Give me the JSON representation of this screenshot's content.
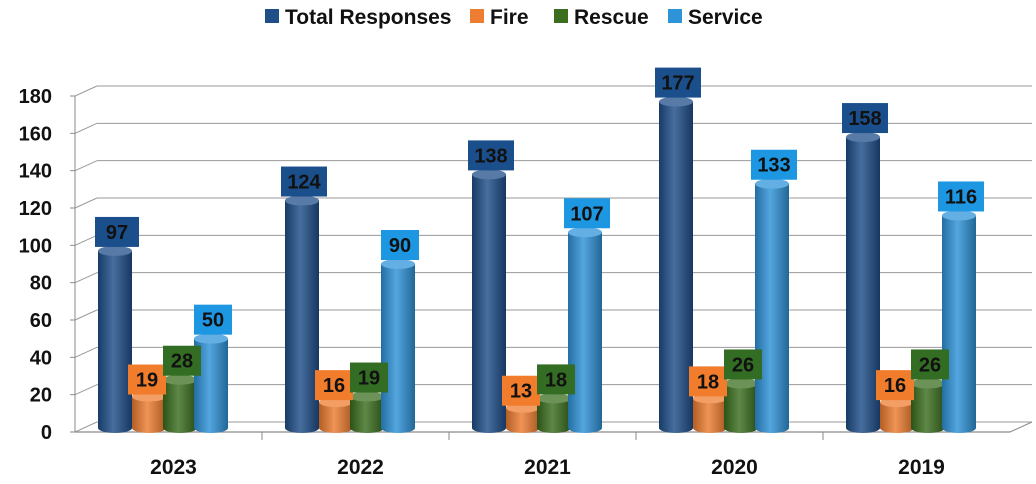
{
  "chart_data": {
    "type": "bar",
    "title": "",
    "xlabel": "",
    "ylabel": "",
    "ylim": [
      0,
      180
    ],
    "yticks": [
      0,
      20,
      40,
      60,
      80,
      100,
      120,
      140,
      160,
      180
    ],
    "grid": true,
    "legend_position": "top",
    "categories": [
      "2023",
      "2022",
      "2021",
      "2020",
      "2019"
    ],
    "series": [
      {
        "name": "Total Responses",
        "color": "#1f4e89",
        "label_color": "#1b4f8c",
        "values": [
          97,
          124,
          138,
          177,
          158
        ]
      },
      {
        "name": "Fire",
        "color": "#ed7d31",
        "label_color": "#f07c2c",
        "values": [
          19,
          16,
          13,
          18,
          16
        ]
      },
      {
        "name": "Rescue",
        "color": "#3b6e1f",
        "label_color": "#336d23",
        "values": [
          28,
          19,
          18,
          26,
          26
        ]
      },
      {
        "name": "Service",
        "color": "#2f93d8",
        "label_color": "#1e97e3",
        "values": [
          50,
          90,
          107,
          133,
          116
        ]
      }
    ]
  }
}
